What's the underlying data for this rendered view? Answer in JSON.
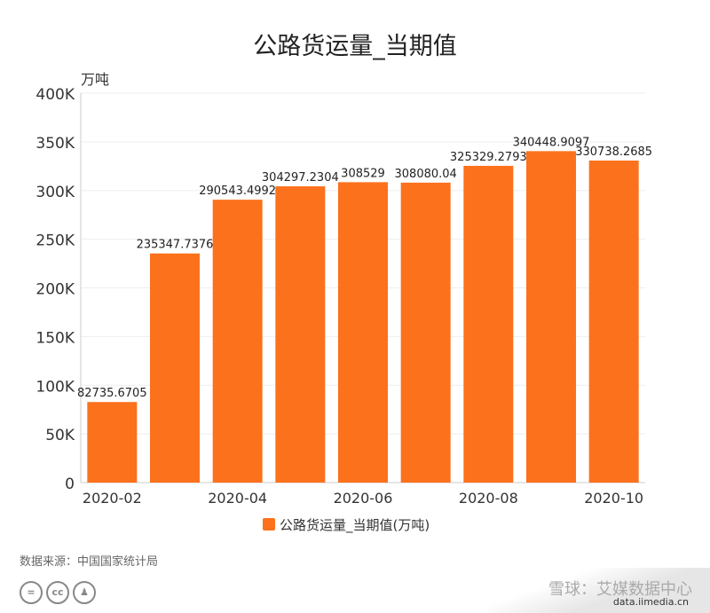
{
  "chart_data": {
    "type": "bar",
    "title": "公路货运量_当期值",
    "ylabel": "万吨",
    "categories": [
      "2020-02",
      "2020-03",
      "2020-04",
      "2020-05",
      "2020-06",
      "2020-07",
      "2020-08",
      "2020-09",
      "2020-10"
    ],
    "x_tick_labels": [
      "2020-02",
      "2020-04",
      "2020-06",
      "2020-08",
      "2020-10"
    ],
    "y_tick_labels": [
      "0",
      "50K",
      "100K",
      "150K",
      "200K",
      "250K",
      "300K",
      "350K",
      "400K"
    ],
    "ylim": [
      0,
      400000
    ],
    "grid": true,
    "series": [
      {
        "name": "公路货运量_当期值(万吨)",
        "values": [
          82735.6705,
          235347.7376,
          290543.4992,
          304297.2304,
          308529,
          308080.04,
          325329.2793,
          340448.9097,
          330738.2685
        ],
        "labels": [
          "82735.6705",
          "235347.7376",
          "290543.4992",
          "304297.2304",
          "308529",
          "308080.04",
          "325329.2793",
          "340448.9097",
          "330738.2685"
        ]
      }
    ],
    "legend_position": "bottom",
    "color": "#fc711c"
  },
  "source": "数据来源：中国国家统计局",
  "watermark": {
    "line1": "雪球：艾媒数据中心",
    "line2": "data.iimedia.cn"
  },
  "license_icons": [
    "=",
    "cc",
    "person"
  ]
}
